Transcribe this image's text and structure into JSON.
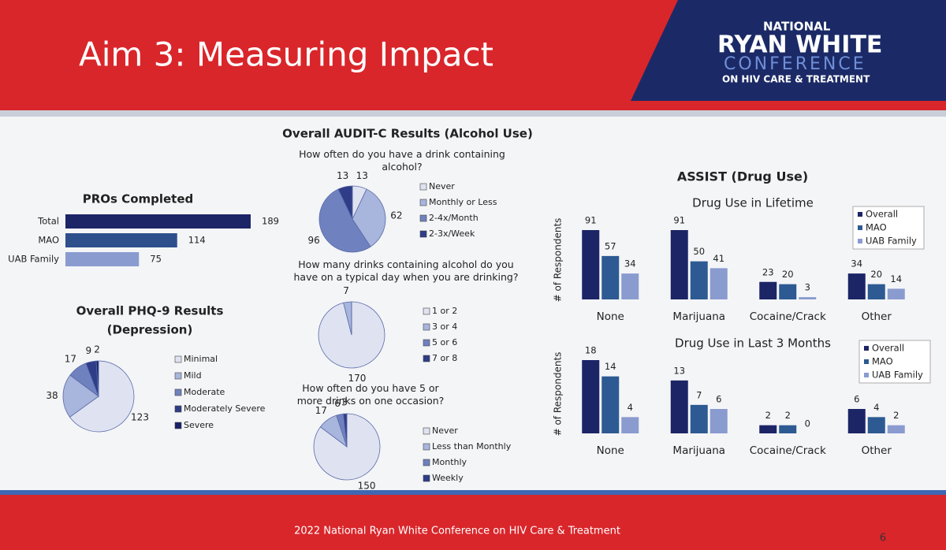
{
  "slide": {
    "title": "Aim 3: Measuring Impact",
    "logo": [
      "NATIONAL",
      "RYAN WHITE",
      "CONFERENCE",
      "ON HIV CARE & TREATMENT"
    ],
    "audit_title": "Overall AUDIT-C Results (Alcohol Use)",
    "assist_title": "ASSIST (Drug Use)",
    "footer": "2022 National Ryan White Conference on HIV Care & Treatment",
    "page": "6"
  },
  "chart_data": [
    {
      "type": "hbar",
      "title": "PROs Completed",
      "categories": [
        "Total",
        "MAO",
        "UAB Family"
      ],
      "values": [
        189,
        114,
        75
      ],
      "colors": [
        "#1c2566",
        "#2d4f8c",
        "#8a9bd0"
      ]
    },
    {
      "type": "pie",
      "title": "Overall PHQ-9 Results",
      "subtitle": "(Depression)",
      "categories": [
        "Minimal",
        "Mild",
        "Moderate",
        "Moderately Severe",
        "Severe"
      ],
      "values": [
        123,
        38,
        17,
        9,
        2
      ],
      "colors": [
        "#dfe3f1",
        "#a8b5dc",
        "#6f82bf",
        "#2f3d88",
        "#17206a"
      ]
    },
    {
      "type": "pie",
      "title": "How often do you have a drink containing alcohol?",
      "categories": [
        "Never",
        "Monthly or Less",
        "2-4x/Month",
        "2-3x/Week"
      ],
      "values": [
        13,
        62,
        96,
        13
      ],
      "colors": [
        "#dfe3f1",
        "#a8b5dc",
        "#6f82bf",
        "#2f3d88"
      ]
    },
    {
      "type": "pie",
      "title": "How many drinks containing alcohol do you have on a typical day when you are drinking?",
      "categories": [
        "1 or 2",
        "3 or 4",
        "5 or 6",
        "7 or 8"
      ],
      "values": [
        170,
        7,
        0,
        0
      ],
      "colors": [
        "#dfe3f1",
        "#a8b5dc",
        "#6f82bf",
        "#2f3d88"
      ]
    },
    {
      "type": "pie",
      "title": "How often do you have 5 or more drinks on one occasion?",
      "categories": [
        "Never",
        "Less than Monthly",
        "Monthly",
        "Weekly"
      ],
      "values": [
        150,
        17,
        6,
        3
      ],
      "colors": [
        "#dfe3f1",
        "#a8b5dc",
        "#6f82bf",
        "#2f3d88"
      ]
    },
    {
      "type": "grouped_bar",
      "title": "Drug Use in Lifetime",
      "y_label": "# of Respondents",
      "categories": [
        "None",
        "Marijuana",
        "Cocaine/Crack",
        "Other"
      ],
      "series": [
        {
          "name": "Overall",
          "color": "#1c2566",
          "values": [
            91,
            91,
            23,
            34
          ]
        },
        {
          "name": "MAO",
          "color": "#2d5a92",
          "values": [
            57,
            50,
            20,
            20
          ]
        },
        {
          "name": "UAB Family",
          "color": "#8a9bd0",
          "values": [
            34,
            41,
            3,
            14
          ]
        }
      ]
    },
    {
      "type": "grouped_bar",
      "title": "Drug Use in Last 3 Months",
      "y_label": "# of Respondents",
      "categories": [
        "None",
        "Marijuana",
        "Cocaine/Crack",
        "Other"
      ],
      "series": [
        {
          "name": "Overall",
          "color": "#1c2566",
          "values": [
            18,
            13,
            2,
            6
          ]
        },
        {
          "name": "MAO",
          "color": "#2d5a92",
          "values": [
            14,
            7,
            2,
            4
          ]
        },
        {
          "name": "UAB Family",
          "color": "#8a9bd0",
          "values": [
            4,
            6,
            0,
            2
          ]
        }
      ]
    }
  ]
}
